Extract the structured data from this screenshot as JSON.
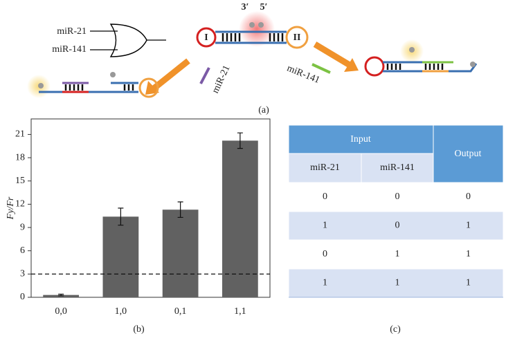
{
  "diagram": {
    "gate_inputs": [
      "miR-21",
      "miR-141"
    ],
    "end_labels": [
      "3′",
      "5′"
    ],
    "loop_labels": [
      "I",
      "II"
    ],
    "strand_labels": [
      "miR-21",
      "miR-141"
    ],
    "caption": "(a)"
  },
  "chart_data": {
    "type": "bar",
    "ylabel": "Fy/Fr",
    "categories": [
      "0,0",
      "1,0",
      "0,1",
      "1,1"
    ],
    "values": [
      0.3,
      10.4,
      11.3,
      20.2
    ],
    "errors": [
      0.1,
      1.1,
      1.0,
      1.0
    ],
    "color": "#616161",
    "ylim": [
      0,
      23
    ],
    "yticks": [
      0,
      3,
      6,
      9,
      12,
      15,
      18,
      21
    ],
    "threshold": 3,
    "caption": "(b)"
  },
  "table": {
    "header": {
      "group": "Input",
      "output": "Output",
      "columns": [
        "miR-21",
        "miR-141"
      ]
    },
    "rows": [
      [
        "0",
        "0",
        "0"
      ],
      [
        "1",
        "0",
        "1"
      ],
      [
        "0",
        "1",
        "1"
      ],
      [
        "1",
        "1",
        "1"
      ]
    ],
    "header_color": "#5b9bd5",
    "band_color": "#d9e2f3",
    "caption": "(c)"
  }
}
